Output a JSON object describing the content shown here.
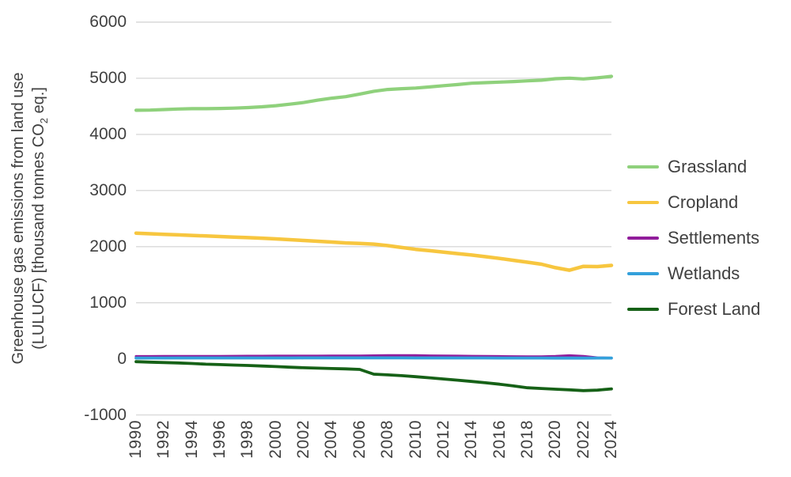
{
  "figure": {
    "background": "#FFFFFF",
    "text_color": "#404040",
    "gridline_color": "#D9D9D9"
  },
  "y_axis": {
    "label_line1": "Greenhouse gas emissions from land use",
    "label_line2_pre": "(LULUCF) [thousand tonnes CO",
    "label_line2_sub": "2",
    "label_line2_post": " eq.]"
  },
  "chart_data": {
    "type": "line",
    "title": "",
    "xlabel": "",
    "ylabel": "Greenhouse gas emissions from land use (LULUCF) [thousand tonnes CO2 eq.]",
    "ylim": [
      -1000,
      6000
    ],
    "grid": "horizontal",
    "legend_position": "right",
    "y_ticks": [
      6000,
      5000,
      4000,
      3000,
      2000,
      1000,
      0,
      -1000
    ],
    "x_tick_years": [
      1990,
      1992,
      1994,
      1996,
      1998,
      2000,
      2002,
      2004,
      2006,
      2008,
      2010,
      2012,
      2014,
      2016,
      2018,
      2020,
      2022,
      2024
    ],
    "x": [
      1990,
      1991,
      1992,
      1993,
      1994,
      1995,
      1996,
      1997,
      1998,
      1999,
      2000,
      2001,
      2002,
      2003,
      2004,
      2005,
      2006,
      2007,
      2008,
      2009,
      2010,
      2011,
      2012,
      2013,
      2014,
      2015,
      2016,
      2017,
      2018,
      2019,
      2020,
      2021,
      2022,
      2023,
      2024
    ],
    "series": [
      {
        "name": "Grassland",
        "color": "#8FD17C",
        "stroke_width": 4.2,
        "values": [
          4430,
          4432,
          4442,
          4452,
          4458,
          4458,
          4462,
          4468,
          4478,
          4492,
          4512,
          4538,
          4568,
          4610,
          4645,
          4672,
          4718,
          4768,
          4800,
          4815,
          4826,
          4845,
          4868,
          4888,
          4912,
          4922,
          4932,
          4942,
          4954,
          4966,
          4992,
          5002,
          4988,
          5008,
          5035
        ]
      },
      {
        "name": "Cropland",
        "color": "#F7C63F",
        "stroke_width": 4.5,
        "values": [
          2240,
          2230,
          2220,
          2210,
          2200,
          2190,
          2180,
          2170,
          2160,
          2150,
          2138,
          2124,
          2110,
          2096,
          2082,
          2066,
          2058,
          2044,
          2018,
          1984,
          1952,
          1928,
          1902,
          1876,
          1850,
          1820,
          1790,
          1756,
          1722,
          1686,
          1625,
          1580,
          1648,
          1645,
          1665
        ]
      },
      {
        "name": "Settlements",
        "color": "#911D9B",
        "stroke_width": 3.2,
        "values": [
          45,
          45,
          46,
          46,
          47,
          48,
          48,
          49,
          50,
          50,
          51,
          51,
          52,
          52,
          53,
          54,
          55,
          57,
          62,
          62,
          60,
          56,
          53,
          51,
          49,
          47,
          44,
          42,
          40,
          40,
          46,
          58,
          48,
          20,
          15
        ]
      },
      {
        "name": "Wetlands",
        "color": "#33A0DB",
        "stroke_width": 3.8,
        "values": [
          15,
          15,
          15,
          16,
          16,
          16,
          16,
          16,
          17,
          17,
          17,
          17,
          18,
          18,
          18,
          18,
          18,
          18,
          18,
          18,
          17,
          17,
          17,
          16,
          16,
          16,
          15,
          15,
          15,
          15,
          14,
          14,
          14,
          15,
          15
        ]
      },
      {
        "name": "Forest Land",
        "color": "#166117",
        "stroke_width": 3.8,
        "values": [
          -50,
          -58,
          -65,
          -72,
          -82,
          -95,
          -102,
          -110,
          -118,
          -128,
          -138,
          -148,
          -158,
          -165,
          -172,
          -178,
          -188,
          -272,
          -286,
          -300,
          -318,
          -338,
          -358,
          -380,
          -402,
          -426,
          -452,
          -482,
          -515,
          -528,
          -540,
          -552,
          -566,
          -558,
          -535
        ]
      }
    ]
  }
}
